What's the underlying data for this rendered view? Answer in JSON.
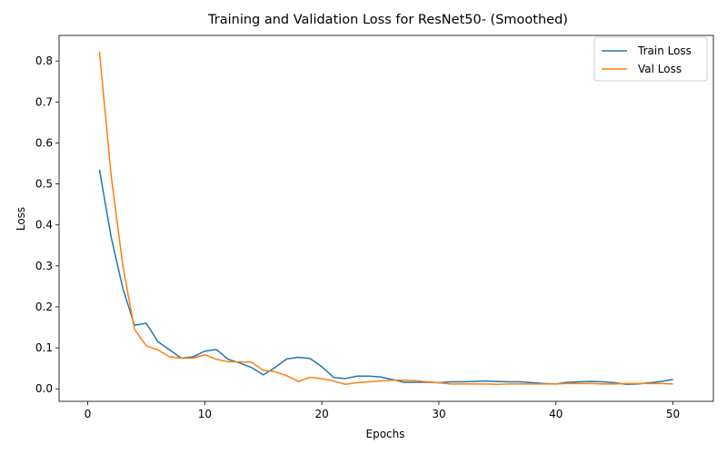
{
  "chart_data": {
    "type": "line",
    "title": "Training and Validation Loss for ResNet50- (Smoothed)",
    "xlabel": "Epochs",
    "ylabel": "Loss",
    "xlim": [
      -2.45,
      53.45
    ],
    "ylim": [
      -0.0305,
      0.8625
    ],
    "xticks": [
      0,
      10,
      20,
      30,
      40,
      50
    ],
    "yticks": [
      0.0,
      0.1,
      0.2,
      0.3,
      0.4,
      0.5,
      0.6,
      0.7,
      0.8
    ],
    "ytick_labels": [
      "0.0",
      "0.1",
      "0.2",
      "0.3",
      "0.4",
      "0.5",
      "0.6",
      "0.7",
      "0.8"
    ],
    "grid": false,
    "legend_position": "top-right",
    "x": [
      1,
      2,
      3,
      4,
      5,
      6,
      7,
      8,
      9,
      10,
      11,
      12,
      13,
      14,
      15,
      16,
      17,
      18,
      19,
      20,
      21,
      22,
      23,
      24,
      25,
      26,
      27,
      28,
      29,
      30,
      31,
      32,
      33,
      34,
      35,
      36,
      37,
      38,
      39,
      40,
      41,
      42,
      43,
      44,
      45,
      46,
      47,
      48,
      49,
      50
    ],
    "series": [
      {
        "name": "Train Loss",
        "color": "#1f77b4",
        "values": [
          0.535,
          0.37,
          0.245,
          0.155,
          0.16,
          0.115,
          0.095,
          0.075,
          0.078,
          0.092,
          0.096,
          0.072,
          0.063,
          0.052,
          0.034,
          0.052,
          0.073,
          0.077,
          0.074,
          0.054,
          0.028,
          0.025,
          0.031,
          0.031,
          0.029,
          0.023,
          0.016,
          0.016,
          0.016,
          0.015,
          0.017,
          0.017,
          0.018,
          0.019,
          0.018,
          0.017,
          0.017,
          0.015,
          0.013,
          0.012,
          0.016,
          0.017,
          0.018,
          0.017,
          0.015,
          0.011,
          0.012,
          0.015,
          0.018,
          0.023
        ]
      },
      {
        "name": "Val Loss",
        "color": "#ff7f0e",
        "values": [
          0.823,
          0.52,
          0.3,
          0.145,
          0.105,
          0.095,
          0.078,
          0.075,
          0.075,
          0.083,
          0.072,
          0.066,
          0.066,
          0.065,
          0.045,
          0.042,
          0.032,
          0.018,
          0.028,
          0.025,
          0.019,
          0.011,
          0.015,
          0.017,
          0.019,
          0.021,
          0.021,
          0.02,
          0.017,
          0.015,
          0.012,
          0.012,
          0.012,
          0.012,
          0.011,
          0.012,
          0.012,
          0.012,
          0.012,
          0.012,
          0.013,
          0.013,
          0.013,
          0.012,
          0.012,
          0.013,
          0.013,
          0.013,
          0.013,
          0.012
        ]
      }
    ]
  }
}
